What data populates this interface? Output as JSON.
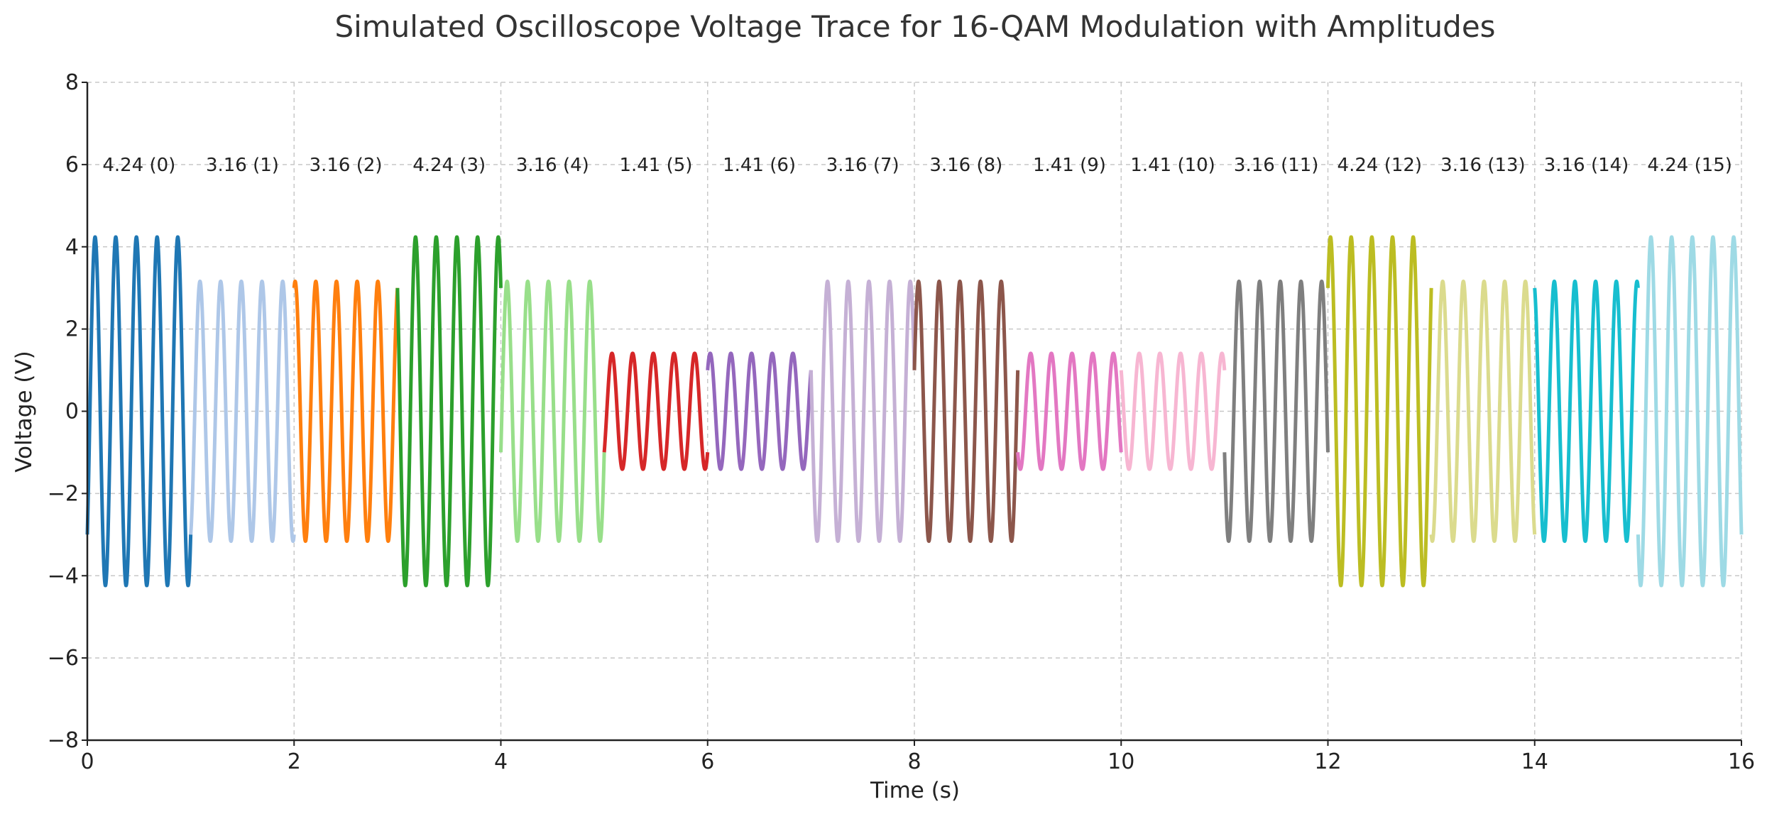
{
  "chart_data": {
    "type": "line",
    "title": "Simulated Oscilloscope Voltage Trace for 16-QAM Modulation with Amplitudes",
    "xlabel": "Time (s)",
    "ylabel": "Voltage (V)",
    "xlim": [
      0,
      16
    ],
    "ylim": [
      -8,
      8
    ],
    "x_ticks": [
      "0",
      "2",
      "4",
      "6",
      "8",
      "10",
      "12",
      "14",
      "16"
    ],
    "y_ticks": [
      "−8",
      "−6",
      "−4",
      "−2",
      "0",
      "2",
      "4",
      "6",
      "8"
    ],
    "grid": true,
    "carrier_cycles_per_second": 5,
    "label_y": 6,
    "segments": [
      {
        "start": 0,
        "end": 1,
        "amplitude": 4.24,
        "phase_deg": 225,
        "label": "4.24 (0)",
        "color": "#1f77b4"
      },
      {
        "start": 1,
        "end": 2,
        "amplitude": 3.16,
        "phase_deg": 198.4,
        "label": "3.16 (1)",
        "color": "#aec7e8"
      },
      {
        "start": 2,
        "end": 3,
        "amplitude": 3.16,
        "phase_deg": 341.6,
        "label": "3.16 (2)",
        "color": "#ff7f0e"
      },
      {
        "start": 3,
        "end": 4,
        "amplitude": 4.24,
        "phase_deg": 45,
        "label": "4.24 (3)",
        "color": "#2ca02c"
      },
      {
        "start": 4,
        "end": 5,
        "amplitude": 3.16,
        "phase_deg": 251.6,
        "label": "3.16 (4)",
        "color": "#98df8a"
      },
      {
        "start": 5,
        "end": 6,
        "amplitude": 1.41,
        "phase_deg": 225,
        "label": "1.41 (5)",
        "color": "#d62728"
      },
      {
        "start": 6,
        "end": 7,
        "amplitude": 1.41,
        "phase_deg": 315,
        "label": "1.41 (6)",
        "color": "#9467bd"
      },
      {
        "start": 7,
        "end": 8,
        "amplitude": 3.16,
        "phase_deg": 71.6,
        "label": "3.16 (7)",
        "color": "#c5b0d5"
      },
      {
        "start": 8,
        "end": 9,
        "amplitude": 3.16,
        "phase_deg": 288.4,
        "label": "3.16 (8)",
        "color": "#8c564b"
      },
      {
        "start": 9,
        "end": 10,
        "amplitude": 1.41,
        "phase_deg": 135,
        "label": "1.41 (9)",
        "color": "#e377c2"
      },
      {
        "start": 10,
        "end": 11,
        "amplitude": 1.41,
        "phase_deg": 45,
        "label": "1.41 (10)",
        "color": "#f7b6d2"
      },
      {
        "start": 11,
        "end": 12,
        "amplitude": 3.16,
        "phase_deg": 108.4,
        "label": "3.16 (11)",
        "color": "#7f7f7f"
      },
      {
        "start": 12,
        "end": 13,
        "amplitude": 4.24,
        "phase_deg": 315,
        "label": "4.24 (12)",
        "color": "#bcbd22"
      },
      {
        "start": 13,
        "end": 14,
        "amplitude": 3.16,
        "phase_deg": 161.6,
        "label": "3.16 (13)",
        "color": "#dbdb8d"
      },
      {
        "start": 14,
        "end": 15,
        "amplitude": 3.16,
        "phase_deg": 18.4,
        "label": "3.16 (14)",
        "color": "#17becf"
      },
      {
        "start": 15,
        "end": 16,
        "amplitude": 4.24,
        "phase_deg": 135,
        "label": "4.24 (15)",
        "color": "#9edae5"
      }
    ]
  }
}
